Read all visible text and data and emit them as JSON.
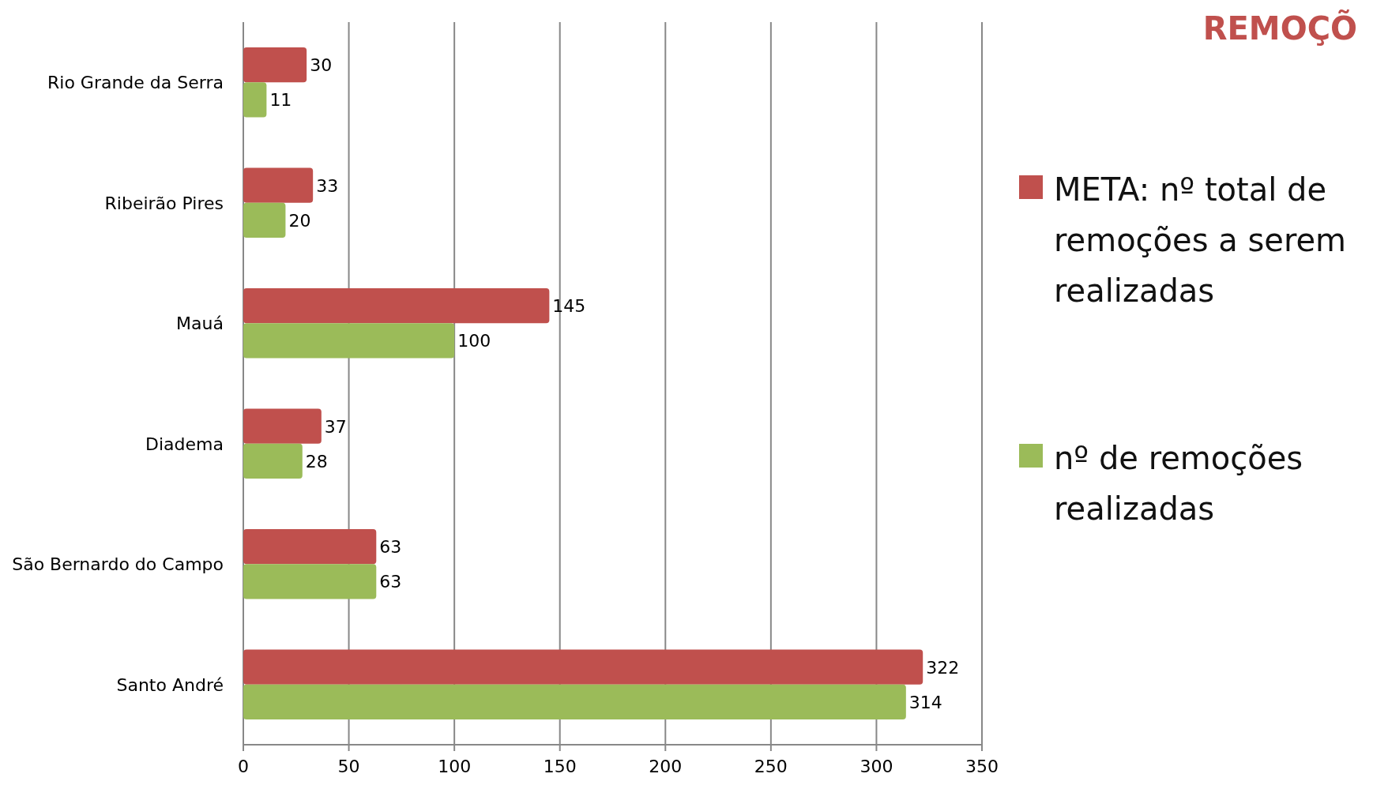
{
  "chart_data": {
    "type": "bar",
    "orientation": "horizontal",
    "title": "REMOÇÕ",
    "categories": [
      "Rio Grande da Serra",
      "Ribeirão Pires",
      "Mauá",
      "Diadema",
      "São Bernardo do Campo",
      "Santo André"
    ],
    "series": [
      {
        "name": "META: nº total de remoções a serem realizadas",
        "color": "#c0504d",
        "values": [
          30,
          33,
          145,
          37,
          63,
          322
        ]
      },
      {
        "name": "nº de remoções realizadas",
        "color": "#9bbb59",
        "values": [
          11,
          20,
          100,
          28,
          63,
          314
        ]
      }
    ],
    "xlim": [
      0,
      350
    ],
    "xticks": [
      0,
      50,
      100,
      150,
      200,
      250,
      300,
      350
    ],
    "grid": "x",
    "legend": "right",
    "data_labels": true
  }
}
